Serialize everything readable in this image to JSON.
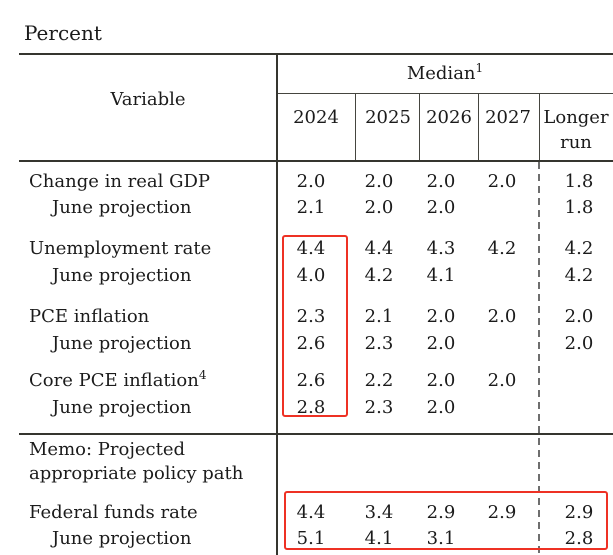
{
  "title": "Percent",
  "table": {
    "variable_header": "Variable",
    "median_header": {
      "text": "Median",
      "superscript": "1"
    },
    "year_headers": [
      "2024",
      "2025",
      "2026",
      "2027"
    ],
    "longer_run_header": {
      "line1": "Longer",
      "line2": "run"
    },
    "rows": [
      {
        "label": "Change in real GDP",
        "sup": "",
        "indent": false,
        "values": [
          "2.0",
          "2.0",
          "2.0",
          "2.0",
          "1.8"
        ]
      },
      {
        "label": "June projection",
        "sup": "",
        "indent": true,
        "values": [
          "2.1",
          "2.0",
          "2.0",
          "",
          "1.8"
        ]
      },
      {
        "label": "Unemployment rate",
        "sup": "",
        "indent": false,
        "values": [
          "4.4",
          "4.4",
          "4.3",
          "4.2",
          "4.2"
        ]
      },
      {
        "label": "June projection",
        "sup": "",
        "indent": true,
        "values": [
          "4.0",
          "4.2",
          "4.1",
          "",
          "4.2"
        ]
      },
      {
        "label": "PCE inflation",
        "sup": "",
        "indent": false,
        "values": [
          "2.3",
          "2.1",
          "2.0",
          "2.0",
          "2.0"
        ]
      },
      {
        "label": "June projection",
        "sup": "",
        "indent": true,
        "values": [
          "2.6",
          "2.3",
          "2.0",
          "",
          "2.0"
        ]
      },
      {
        "label": "Core PCE inflation",
        "sup": "4",
        "indent": false,
        "values": [
          "2.6",
          "2.2",
          "2.0",
          "2.0",
          ""
        ]
      },
      {
        "label": "June projection",
        "sup": "",
        "indent": true,
        "values": [
          "2.8",
          "2.3",
          "2.0",
          "",
          ""
        ]
      }
    ],
    "memo": {
      "line1": "Memo: Projected",
      "line2": "appropriate policy path"
    },
    "policy_rows": [
      {
        "label": "Federal funds rate",
        "sup": "",
        "indent": false,
        "values": [
          "4.4",
          "3.4",
          "2.9",
          "2.9",
          "2.9"
        ]
      },
      {
        "label": "June projection",
        "sup": "",
        "indent": true,
        "values": [
          "5.1",
          "4.1",
          "3.1",
          "",
          "2.8"
        ]
      }
    ]
  },
  "annotations": {
    "highlight_color": "#ee3124",
    "boxes": [
      "2024-column-highlight",
      "federal-funds-rate-highlight"
    ]
  }
}
